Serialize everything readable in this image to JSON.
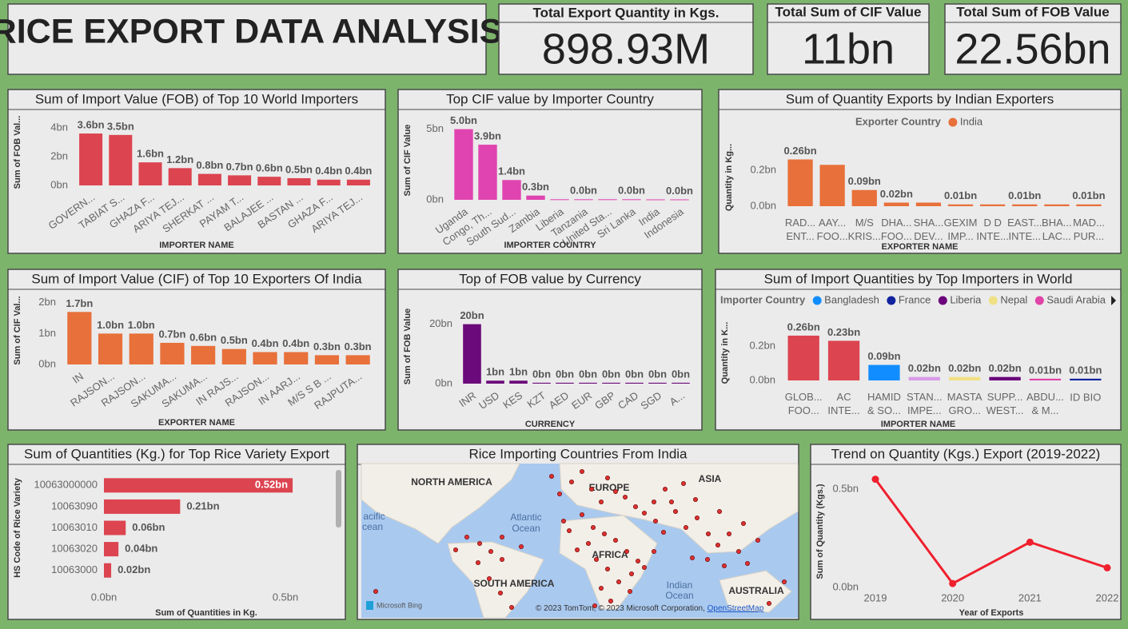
{
  "title": "RICE EXPORT DATA ANALYSIS",
  "kpis": [
    {
      "label": "Total Export Quantity in Kgs.",
      "value": "898.93M"
    },
    {
      "label": "Total Sum of CIF Value",
      "value": "11bn"
    },
    {
      "label": "Total Sum of FOB Value",
      "value": "22.56bn"
    }
  ],
  "chart_data": [
    {
      "type": "bar",
      "title": "Sum of Import Value (FOB) of Top 10 World Importers",
      "y_label": "Sum of FOB Val...",
      "x_label": "IMPORTER NAME",
      "categories": [
        "GOVERN...",
        "TABIAT S...",
        "GHAZA F...",
        "ARIYA TEJ...",
        "SHERKAT ...",
        "PAYAM T...",
        "BALAJEE ...",
        "BASTAN ...",
        "GHAZA F...",
        "ARIYA TEJ..."
      ],
      "values": [
        3.6,
        3.5,
        1.6,
        1.2,
        0.8,
        0.7,
        0.6,
        0.5,
        0.4,
        0.4
      ],
      "value_labels": [
        "3.6bn",
        "3.5bn",
        "1.6bn",
        "1.2bn",
        "0.8bn",
        "0.7bn",
        "0.6bn",
        "0.5bn",
        "0.4bn",
        "0.4bn"
      ],
      "color": "#dc4450",
      "ylim": [
        0,
        4.6
      ],
      "yticks": [
        {
          "value": 0,
          "label": "0bn"
        },
        {
          "value": 2,
          "label": "2bn"
        },
        {
          "value": 4,
          "label": "4bn"
        }
      ]
    },
    {
      "type": "bar",
      "title": "Top CIF value by Importer Country",
      "y_label": "Sum of CIF Value",
      "x_label": "IMPORTER COUNTRY",
      "categories": [
        "Uganda",
        "Congo, Th...",
        "South Sud...",
        "Zambia",
        "Liberia",
        "Tanzania",
        "United Sta...",
        "Sri Lanka",
        "India",
        "Indonesia"
      ],
      "values": [
        5.0,
        3.9,
        1.4,
        0.3,
        0.04,
        0.04,
        0.04,
        0.04,
        0.03,
        0.03
      ],
      "value_labels": [
        "5.0bn",
        "3.9bn",
        "1.4bn",
        "0.3bn",
        null,
        "0.0bn",
        null,
        "0.0bn",
        null,
        "0.0bn"
      ],
      "color": "#e044b0",
      "ylim": [
        0,
        5.6
      ],
      "yticks": [
        {
          "value": 0,
          "label": "0bn"
        },
        {
          "value": 5,
          "label": "5bn"
        }
      ]
    },
    {
      "type": "bar",
      "title": "Sum of Quantity Exports by Indian Exporters",
      "y_label": "Quantity in Kg...",
      "x_label": "EXPORTER NAME",
      "legend_title": "Exporter Country",
      "legend": [
        {
          "name": "India",
          "color": "#e8703a"
        }
      ],
      "categories": [
        "RAD...\nENT...",
        "AAY...\nFOO...",
        "M/S\nKRIS...",
        "DHA...\nFOO...",
        "SHA...\nDEV...",
        "GEXIM\nIMP...",
        "D D\nINTE...",
        "EAST...\nINTE...",
        "BHA...\nLAC...",
        "MAD...\nPUR..."
      ],
      "values": [
        0.26,
        0.23,
        0.09,
        0.02,
        0.02,
        0.01,
        0.01,
        0.01,
        0.01,
        0.01
      ],
      "value_labels": [
        "0.26bn",
        null,
        "0.09bn",
        "0.02bn",
        null,
        "0.01bn",
        null,
        "0.01bn",
        null,
        "0.01bn"
      ],
      "color": "#e8703a",
      "ylim": [
        0,
        0.32
      ],
      "yticks": [
        {
          "value": 0,
          "label": "0.0bn"
        },
        {
          "value": 0.2,
          "label": "0.2bn"
        }
      ]
    },
    {
      "type": "bar",
      "title": "Sum of Import Value (CIF) of Top 10 Exporters Of India",
      "y_label": "Sum of CIF Val...",
      "x_label": "EXPORTER NAME",
      "categories": [
        "IN",
        "RAJSON...",
        "RAJSON...",
        "SAKUMA...",
        "SAKUMA...",
        "IN RAJS...",
        "RAJSON...",
        "IN AARJ...",
        "M/S S B ...",
        "RAJPUTA..."
      ],
      "values": [
        1.7,
        1.0,
        1.0,
        0.7,
        0.6,
        0.5,
        0.4,
        0.4,
        0.3,
        0.3
      ],
      "value_labels": [
        "1.7bn",
        "1.0bn",
        "1.0bn",
        "0.7bn",
        "0.6bn",
        "0.5bn",
        "0.4bn",
        "0.4bn",
        "0.3bn",
        "0.3bn"
      ],
      "color": "#e8703a",
      "ylim": [
        0,
        2.2
      ],
      "yticks": [
        {
          "value": 0,
          "label": "0bn"
        },
        {
          "value": 1,
          "label": "1bn"
        },
        {
          "value": 2,
          "label": "2bn"
        }
      ]
    },
    {
      "type": "bar",
      "title": "Top of FOB value by Currency",
      "y_label": "Sum of FOB Value",
      "x_label": "CURRENCY",
      "categories": [
        "INR",
        "USD",
        "KES",
        "KZT",
        "AED",
        "EUR",
        "GBP",
        "CAD",
        "SGD",
        "A..."
      ],
      "values": [
        20,
        1,
        1,
        0.3,
        0.3,
        0.3,
        0.3,
        0.3,
        0.3,
        0.3
      ],
      "value_labels": [
        "20bn",
        "1bn",
        "1bn",
        "0bn",
        "0bn",
        "0bn",
        "0bn",
        "0bn",
        "0bn",
        "0bn"
      ],
      "color": "#6b0a7a",
      "ylim": [
        0,
        25
      ],
      "yticks": [
        {
          "value": 0,
          "label": "0bn"
        },
        {
          "value": 20,
          "label": "20bn"
        }
      ]
    },
    {
      "type": "bar",
      "title": "Sum of Import Quantities by Top Importers in World",
      "y_label": "Quantity in K...",
      "x_label": "IMPORTER NAME",
      "legend_title": "Importer Country",
      "legend": [
        {
          "name": "Bangladesh",
          "color": "#118dff"
        },
        {
          "name": "France",
          "color": "#12239e"
        },
        {
          "name": "Liberia",
          "color": "#6b007b"
        },
        {
          "name": "Nepal",
          "color": "#f0e084"
        },
        {
          "name": "Saudi Arabia",
          "color": "#e044a7"
        }
      ],
      "categories": [
        "GLOB...\nFOO...",
        "AC\nINTE...",
        "HAMID\n& SO...",
        "STAN...\nIMPE...",
        "MASTA\nGRO...",
        "SUPP...\nWEST...",
        "ABDU...\n& M...",
        "ID BIO"
      ],
      "values": [
        0.26,
        0.23,
        0.09,
        0.02,
        0.02,
        0.02,
        0.01,
        0.01
      ],
      "value_labels": [
        "0.26bn",
        "0.23bn",
        "0.09bn",
        "0.02bn",
        "0.02bn",
        "0.02bn",
        "0.01bn",
        "0.01bn"
      ],
      "colors": [
        "#dc4450",
        "#dc4450",
        "#118dff",
        "#d99be8",
        "#f0e084",
        "#6b007b",
        "#e044a7",
        "#12239e"
      ],
      "ylim": [
        0,
        0.32
      ],
      "yticks": [
        {
          "value": 0,
          "label": "0.0bn"
        },
        {
          "value": 0.2,
          "label": "0.2bn"
        }
      ]
    },
    {
      "type": "hbar",
      "title": "Sum of Quantities (Kg.) for Top Rice Variety Export",
      "y_label": "HS Code of Rice Variety",
      "x_label": "Sum of Quantities in Kg.",
      "categories": [
        "10063000000",
        "10063090",
        "10063010",
        "10063020",
        "10063000"
      ],
      "values": [
        0.52,
        0.21,
        0.06,
        0.04,
        0.02
      ],
      "value_labels": [
        "0.52bn",
        "0.21bn",
        "0.06bn",
        "0.04bn",
        "0.02bn"
      ],
      "color": "#dc4450",
      "xlim": [
        0,
        0.63
      ],
      "xticks": [
        {
          "value": 0,
          "label": "0.0bn"
        },
        {
          "value": 0.5,
          "label": "0.5bn"
        }
      ]
    },
    {
      "type": "line",
      "title": "Trend on Quantity (Kgs.) Export (2019-2022)",
      "y_label": "Sum of Quantity (Kgs.)",
      "x_label": "Year of Exports",
      "categories": [
        "2019",
        "2020",
        "2021",
        "2022"
      ],
      "values": [
        0.55,
        0.02,
        0.23,
        0.1
      ],
      "color": "#f0202e",
      "ylim": [
        0,
        0.65
      ],
      "yticks": [
        {
          "value": 0,
          "label": "0.0bn"
        },
        {
          "value": 0.5,
          "label": "0.5bn"
        }
      ]
    }
  ],
  "map": {
    "title": "Rice Importing Countries From India",
    "labels": [
      "NORTH AMERICA",
      "EUROPE",
      "ASIA",
      "Atlantic",
      "Ocean",
      "AFRICA",
      "SOUTH AMERICA",
      "Indian",
      "Ocean",
      "AUSTRALIA",
      "acific",
      "cean"
    ],
    "attribution": "© 2023 TomTom, © 2023 Microsoft Corporation, ",
    "attribution_link": "OpenStreetMap",
    "provider": "Microsoft Bing"
  }
}
